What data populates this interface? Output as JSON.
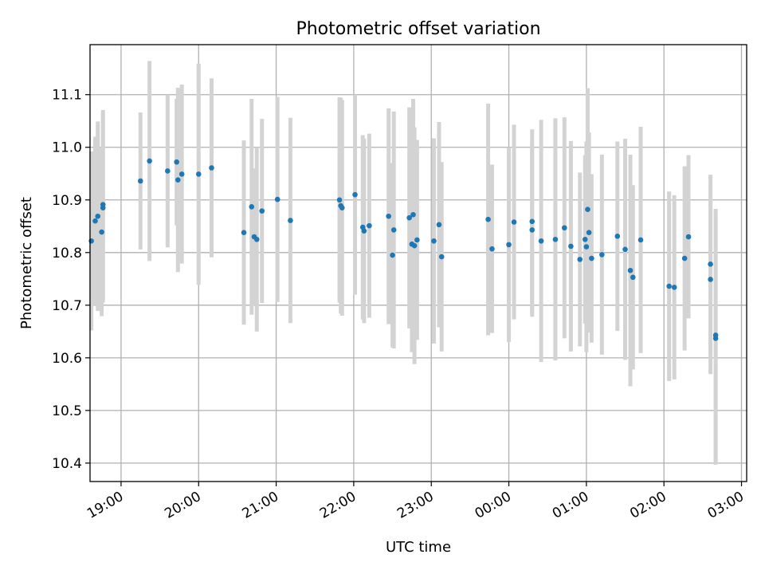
{
  "chart_data": {
    "type": "scatter",
    "title": "Photometric offset variation",
    "xlabel": "UTC time",
    "ylabel": "Photometric offset",
    "grid": true,
    "legend": "none",
    "colors": {
      "points": "#1f77b4",
      "errorbars": "#d3d3d3",
      "grid": "#b0b0b0",
      "axes": "#000000"
    },
    "x_ticks": [
      "19:00",
      "20:00",
      "21:00",
      "22:00",
      "23:00",
      "00:00",
      "01:00",
      "02:00",
      "03:00"
    ],
    "x_tick_times": [
      "19:00",
      "20:00",
      "21:00",
      "22:00",
      "23:00",
      "00:00",
      "01:00",
      "02:00",
      "03:00"
    ],
    "xlim": [
      "18:36",
      "03:04"
    ],
    "y_ticks": [
      "10.4",
      "10.5",
      "10.6",
      "10.7",
      "10.8",
      "10.9",
      "11.0",
      "11.1"
    ],
    "ylim": [
      10.365,
      11.195
    ],
    "series": [
      {
        "x": [
          "18:37",
          "18:40",
          "18:42",
          "18:45",
          "18:46",
          "18:46",
          "19:15",
          "19:22",
          "19:36",
          "19:43",
          "19:44",
          "19:47",
          "20:00",
          "20:10",
          "20:35",
          "20:41",
          "20:43",
          "20:45",
          "20:49",
          "21:01",
          "21:11",
          "21:49",
          "21:50",
          "21:51",
          "22:01",
          "22:07",
          "22:08",
          "22:12",
          "22:27",
          "22:30",
          "22:31",
          "22:43",
          "22:45",
          "22:46",
          "22:47",
          "22:49",
          "23:02",
          "23:06",
          "23:08",
          "23:44",
          "23:47",
          "24:00",
          "24:04",
          "24:18",
          "24:18",
          "24:25",
          "24:36",
          "24:43",
          "24:48",
          "24:55",
          "24:59",
          "25:00",
          "25:01",
          "25:02",
          "25:04",
          "25:12",
          "25:24",
          "25:30",
          "25:34",
          "25:36",
          "25:42",
          "26:04",
          "26:08",
          "26:16",
          "26:19",
          "26:36",
          "26:36",
          "26:40",
          "26:40"
        ],
        "y": [
          10.822,
          10.86,
          10.869,
          10.839,
          10.891,
          10.885,
          10.936,
          10.974,
          10.955,
          10.972,
          10.938,
          10.949,
          10.949,
          10.961,
          10.838,
          10.887,
          10.83,
          10.825,
          10.879,
          10.901,
          10.861,
          10.9,
          10.889,
          10.885,
          10.91,
          10.848,
          10.841,
          10.851,
          10.869,
          10.795,
          10.843,
          10.866,
          10.816,
          10.872,
          10.813,
          10.824,
          10.822,
          10.853,
          10.792,
          10.863,
          10.807,
          10.815,
          10.858,
          10.859,
          10.843,
          10.822,
          10.825,
          10.847,
          10.812,
          10.787,
          10.825,
          10.811,
          10.882,
          10.838,
          10.789,
          10.796,
          10.831,
          10.806,
          10.766,
          10.753,
          10.824,
          10.736,
          10.734,
          10.789,
          10.83,
          10.778,
          10.749,
          10.637,
          10.643
        ],
        "yerr": [
          0.17,
          0.16,
          0.18,
          0.16,
          0.18,
          0.18,
          0.13,
          0.19,
          0.145,
          0.12,
          0.175,
          0.17,
          0.21,
          0.17,
          0.175,
          0.205,
          0.13,
          0.175,
          0.175,
          0.195,
          0.195,
          0.195,
          0.205,
          0.205,
          0.19,
          0.175,
          0.175,
          0.175,
          0.205,
          0.175,
          0.225,
          0.21,
          0.205,
          0.22,
          0.225,
          0.19,
          0.195,
          0.195,
          0.18,
          0.22,
          0.16,
          0.185,
          0.185,
          0.175,
          0.165,
          0.23,
          0.23,
          0.21,
          0.2,
          0.165,
          0.16,
          0.2,
          0.23,
          0.19,
          0.16,
          0.19,
          0.18,
          0.21,
          0.22,
          0.175,
          0.215,
          0.18,
          0.175,
          0.175,
          0.155,
          0.17,
          0.18,
          0.24,
          0.24
        ]
      }
    ]
  }
}
